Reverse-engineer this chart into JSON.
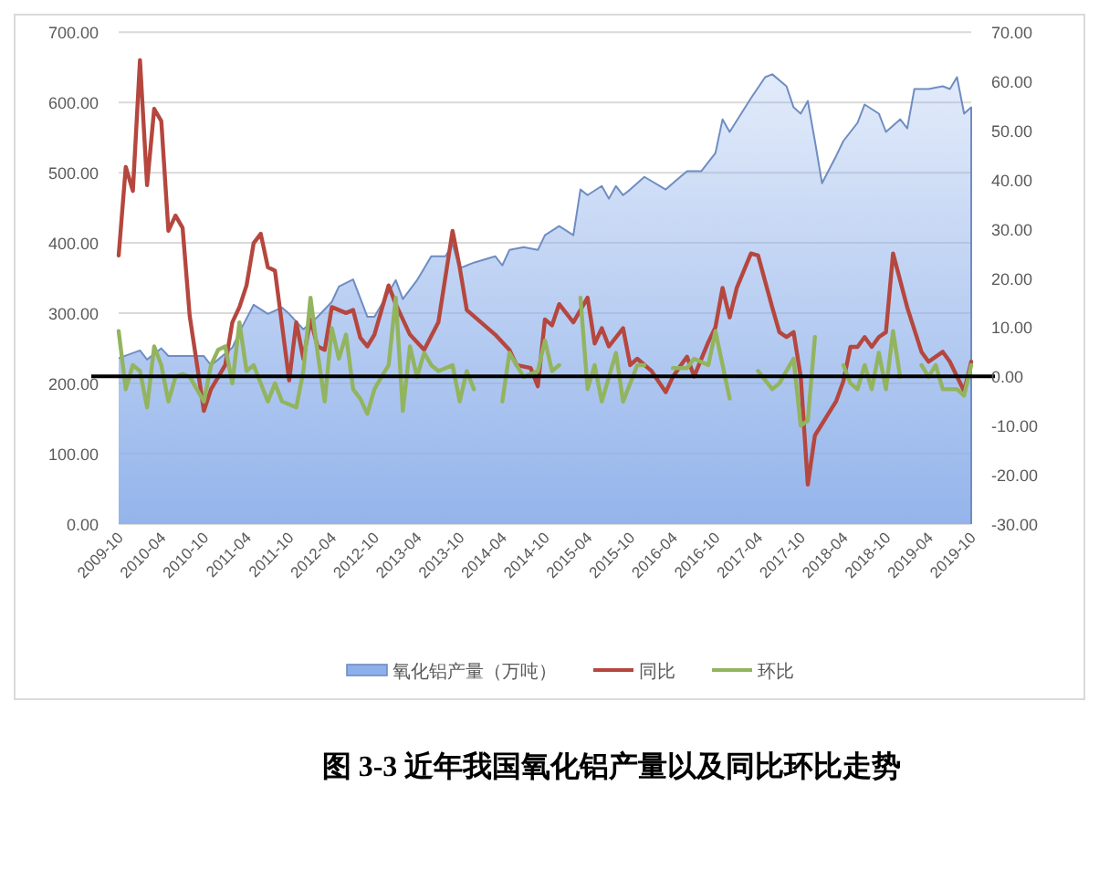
{
  "chart_data": {
    "type": "line",
    "title": "图 3-3 近年我国氧化铝产量以及同比环比走势",
    "xlim": [
      "2009-10",
      "2019-10"
    ],
    "xticks": [
      "2009-10",
      "2010-04",
      "2010-10",
      "2011-04",
      "2011-10",
      "2012-04",
      "2012-10",
      "2013-04",
      "2013-10",
      "2014-04",
      "2014-10",
      "2015-04",
      "2015-10",
      "2016-04",
      "2016-10",
      "2017-04",
      "2017-10",
      "2018-04",
      "2018-10",
      "2019-04",
      "2019-10"
    ],
    "ylim": [
      0,
      700
    ],
    "yticks": [
      {
        "value": 0,
        "label": "0.00"
      },
      {
        "value": 100,
        "label": "100.00"
      },
      {
        "value": 200,
        "label": "200.00"
      },
      {
        "value": 300,
        "label": "300.00"
      },
      {
        "value": 400,
        "label": "400.00"
      },
      {
        "value": 500,
        "label": "500.00"
      },
      {
        "value": 600,
        "label": "600.00"
      },
      {
        "value": 700,
        "label": "700.00"
      }
    ],
    "y2lim": [
      -30,
      70
    ],
    "y2ticks": [
      {
        "value": -30,
        "label": "-30.00"
      },
      {
        "value": -20,
        "label": "-20.00"
      },
      {
        "value": -10,
        "label": "-10.00"
      },
      {
        "value": 0,
        "label": "0.00"
      },
      {
        "value": 10,
        "label": "10.00"
      },
      {
        "value": 20,
        "label": "20.00"
      },
      {
        "value": 30,
        "label": "30.00"
      },
      {
        "value": 40,
        "label": "40.00"
      },
      {
        "value": 50,
        "label": "50.00"
      },
      {
        "value": 60,
        "label": "60.00"
      },
      {
        "value": 70,
        "label": "70.00"
      }
    ],
    "grid": "y",
    "legend": "bottom",
    "ref_lines": [
      {
        "axis": "y2",
        "value": 0,
        "color": "#000000"
      }
    ],
    "series": [
      {
        "name": "氧化铝产量（万吨）",
        "type": "area",
        "color": "#8eb0ea",
        "x": [
          "2009-10",
          "2010-01",
          "2010-02",
          "2010-04",
          "2010-05",
          "2010-07",
          "2010-10",
          "2010-11",
          "2010-12",
          "2011-02",
          "2011-03",
          "2011-05",
          "2011-07",
          "2011-09",
          "2011-10",
          "2011-12",
          "2012-02",
          "2012-04",
          "2012-05",
          "2012-07",
          "2012-09",
          "2012-10",
          "2013-01",
          "2013-02",
          "2013-04",
          "2013-06",
          "2013-08",
          "2013-09",
          "2013-10",
          "2013-12",
          "2014-03",
          "2014-04",
          "2014-05",
          "2014-07",
          "2014-09",
          "2014-10",
          "2014-12",
          "2015-02",
          "2015-03",
          "2015-04",
          "2015-06",
          "2015-07",
          "2015-08",
          "2015-09",
          "2015-10",
          "2015-12",
          "2016-03",
          "2016-04",
          "2016-06",
          "2016-08",
          "2016-10",
          "2016-11",
          "2016-12",
          "2017-03",
          "2017-05",
          "2017-06",
          "2017-08",
          "2017-09",
          "2017-10",
          "2017-11",
          "2017-12",
          "2018-01",
          "2018-03",
          "2018-04",
          "2018-06",
          "2018-07",
          "2018-09",
          "2018-10",
          "2018-12",
          "2019-01",
          "2019-02",
          "2019-04",
          "2019-06",
          "2019-07",
          "2019-08",
          "2019-09",
          "2019-10"
        ],
        "values": [
          236,
          247,
          234,
          250,
          239,
          239,
          239,
          226,
          234,
          251,
          273,
          312,
          299,
          308,
          299,
          277,
          295,
          316,
          338,
          348,
          295,
          295,
          347,
          320,
          347,
          381,
          381,
          398,
          364,
          372,
          381,
          368,
          390,
          394,
          390,
          411,
          424,
          411,
          476,
          468,
          481,
          463,
          481,
          468,
          476,
          494,
          476,
          485,
          502,
          502,
          528,
          576,
          558,
          606,
          636,
          640,
          623,
          593,
          584,
          602,
          545,
          485,
          524,
          545,
          571,
          597,
          584,
          558,
          576,
          563,
          619,
          619,
          623,
          619,
          636,
          584,
          593
        ]
      },
      {
        "name": "同比",
        "axis": "y2",
        "color": "#b5473f",
        "x": [
          "2009-10",
          "2009-11",
          "2009-12",
          "2010-01",
          "2010-02",
          "2010-03",
          "2010-04",
          "2010-05",
          "2010-06",
          "2010-07",
          "2010-08",
          "2010-10",
          "2010-11",
          "2011-01",
          "2011-02",
          "2011-03",
          "2011-04",
          "2011-05",
          "2011-06",
          "2011-07",
          "2011-08",
          "2011-10",
          "2011-11",
          "2011-12",
          "2012-01",
          "2012-02",
          "2012-03",
          "2012-04",
          "2012-06",
          "2012-07",
          "2012-08",
          "2012-09",
          "2012-10",
          "2012-12",
          "2013-01",
          "2013-03",
          "2013-05",
          "2013-07",
          "2013-09",
          "2013-10",
          "2013-11",
          "2014-03",
          "2014-05",
          "2014-06",
          "2014-08",
          "2014-09",
          "2014-10",
          "2014-11",
          "2014-12",
          "2015-02",
          "2015-04",
          "2015-05",
          "2015-06",
          "2015-07",
          "2015-09",
          "2015-10",
          "2015-11",
          "2016-01",
          "2016-03",
          "2016-04",
          "2016-05",
          "2016-06",
          "2016-07",
          "2016-09",
          "2016-10",
          "2016-11",
          "2016-12",
          "2017-01",
          "2017-03",
          "2017-04",
          "2017-06",
          "2017-07",
          "2017-08",
          "2017-09",
          "2017-10",
          "2017-11",
          "2017-12",
          "2018-03",
          "2018-04",
          "2018-05",
          "2018-06",
          "2018-07",
          "2018-08",
          "2018-09",
          "2018-10",
          "2018-11",
          "2019-01",
          "2019-03",
          "2019-04",
          "2019-06",
          "2019-07",
          "2019-09",
          "2019-10"
        ],
        "values": [
          24.6,
          42.6,
          37.7,
          64.3,
          38.9,
          54.4,
          51.9,
          29.6,
          32.7,
          30.2,
          12.3,
          -7.0,
          -2.6,
          2.3,
          11.0,
          14.1,
          18.5,
          27.1,
          29.0,
          22.2,
          21.5,
          -0.8,
          11.0,
          3.6,
          11.6,
          6.1,
          5.4,
          14.1,
          12.9,
          13.5,
          7.9,
          6.1,
          8.5,
          18.5,
          14.7,
          8.5,
          5.4,
          11.0,
          29.6,
          22.2,
          13.5,
          8.5,
          5.4,
          2.3,
          1.7,
          -2.0,
          11.6,
          10.4,
          14.7,
          11.0,
          16.0,
          6.7,
          9.8,
          6.1,
          9.8,
          2.3,
          3.6,
          1.1,
          -3.2,
          -0.1,
          2.0,
          4.0,
          0,
          7,
          10,
          18,
          12,
          18,
          25,
          24.6,
          14,
          9,
          8,
          9,
          0,
          -22,
          -12,
          -5,
          -1,
          6,
          6,
          8,
          6,
          8,
          9,
          25,
          14,
          5,
          3,
          5,
          3,
          -3,
          3
        ]
      },
      {
        "name": "环比",
        "axis": "y2",
        "color": "#93b45f",
        "x": [
          "2009-10",
          "2009-11",
          "2009-12",
          "2010-01",
          "2010-02",
          "2010-03",
          "2010-04",
          "2010-05",
          "2010-06",
          "2010-07",
          "2010-08",
          "2010-10",
          "2010-11",
          "2010-12",
          "2011-01",
          "2011-02",
          "2011-03",
          "2011-04",
          "2011-05",
          "2011-07",
          "2011-08",
          "2011-09",
          "2011-11",
          "2011-12",
          "2012-01",
          "2012-02",
          "2012-03",
          "2012-04",
          "2012-05",
          "2012-06",
          "2012-07",
          "2012-08",
          "2012-09",
          "2012-10",
          "2012-11",
          "2012-12",
          "2013-01",
          "2013-02",
          "2013-03",
          "2013-04",
          "2013-05",
          "2013-06",
          "2013-07",
          "2013-09",
          "2013-10",
          "2013-11",
          "2013-12",
          "2014-02",
          "2014-04",
          "2014-05",
          "2014-06",
          "2014-07",
          "2014-09",
          "2014-10",
          "2014-11",
          "2014-12",
          "2015-01",
          "2015-03",
          "2015-04",
          "2015-05",
          "2015-06",
          "2015-08",
          "2015-09",
          "2015-11",
          "2015-12",
          "2016-02",
          "2016-04",
          "2016-06",
          "2016-07",
          "2016-09",
          "2016-10",
          "2016-12",
          "2017-02",
          "2017-04",
          "2017-06",
          "2017-07",
          "2017-09",
          "2017-10",
          "2017-11",
          "2017-12",
          "2018-02",
          "2018-04",
          "2018-05",
          "2018-06",
          "2018-07",
          "2018-08",
          "2018-09",
          "2018-10",
          "2018-11",
          "2018-12",
          "2019-02",
          "2019-03",
          "2019-04",
          "2019-05",
          "2019-06",
          "2019-08",
          "2019-09",
          "2019-10"
        ],
        "values": [
          9.2,
          -2.6,
          2.3,
          1.1,
          -6.3,
          6.1,
          2.3,
          -5.1,
          -0.1,
          0.5,
          -0.1,
          -5.1,
          2.3,
          5.4,
          6.1,
          -1.4,
          11.0,
          1.1,
          2.3,
          -5.1,
          -1.4,
          -5.1,
          -6.3,
          1.1,
          16.0,
          4.8,
          -5.1,
          9.8,
          3.6,
          8.5,
          -2.6,
          -4.5,
          -7.6,
          -2.6,
          -0.1,
          2.3,
          16.0,
          -7.0,
          6.1,
          -0.1,
          4.8,
          2.3,
          1.1,
          2.3,
          -5.1,
          1.1,
          -2.6,
          null,
          -5.1,
          4.8,
          2.3,
          -0.1,
          1.1,
          7.3,
          1.1,
          2.3,
          null,
          16.0,
          -2.6,
          2.3,
          -5.1,
          4.8,
          -5.1,
          2.3,
          2.3,
          null,
          1.7,
          1.7,
          3.6,
          2.3,
          9.2,
          -4.5,
          null,
          1.1,
          -2.6,
          -1.4,
          3.6,
          -10.0,
          -9.0,
          8.0,
          null,
          2.3,
          -1.4,
          -2.6,
          2.3,
          -2.6,
          4.8,
          -2.6,
          9.2,
          -0.1,
          null,
          2.3,
          -0.1,
          2.3,
          -2.6,
          -2.6,
          -3.9,
          2.3
        ]
      }
    ]
  }
}
